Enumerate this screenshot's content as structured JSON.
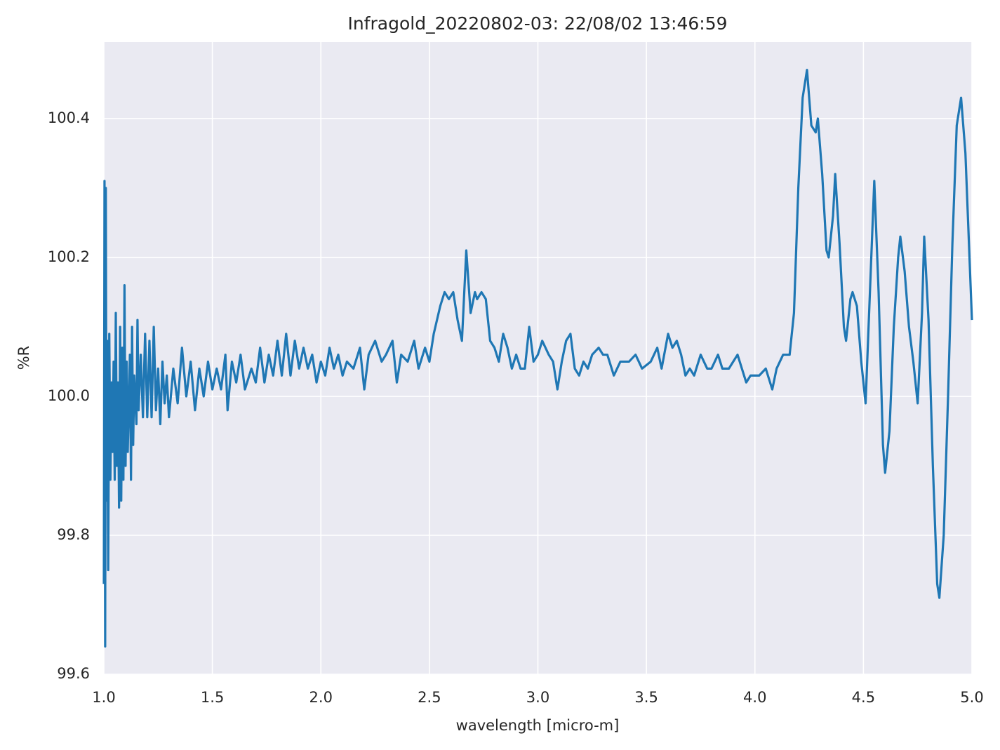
{
  "chart_data": {
    "type": "line",
    "title": "Infragold_20220802-03:  22/08/02 13:46:59",
    "x_label": "wavelength [micro-m]",
    "y_label": "%R",
    "xlim": [
      1.0,
      5.0
    ],
    "ylim": [
      99.6,
      100.51
    ],
    "xticks": [
      {
        "value": 1,
        "label": "1.0"
      },
      1.5,
      {
        "value": 2,
        "label": "2.0"
      },
      2.5,
      {
        "value": 3,
        "label": "3.0"
      },
      3.5,
      {
        "value": 4,
        "label": "4.0"
      },
      4.5,
      {
        "value": 5,
        "label": "5.0"
      }
    ],
    "yticks": [
      99.6,
      99.8,
      {
        "value": 100,
        "label": "100.0"
      },
      100.2,
      100.4
    ],
    "grid": true,
    "background": "#eaeaf2",
    "series": [
      {
        "color": "#1f77b4",
        "x": [
          1.0,
          1.003,
          1.006,
          1.009,
          1.012,
          1.015,
          1.02,
          1.025,
          1.03,
          1.035,
          1.04,
          1.045,
          1.05,
          1.055,
          1.06,
          1.065,
          1.07,
          1.075,
          1.08,
          1.085,
          1.09,
          1.095,
          1.1,
          1.105,
          1.11,
          1.12,
          1.125,
          1.13,
          1.135,
          1.14,
          1.15,
          1.155,
          1.16,
          1.17,
          1.18,
          1.19,
          1.2,
          1.21,
          1.22,
          1.23,
          1.24,
          1.25,
          1.26,
          1.27,
          1.28,
          1.29,
          1.3,
          1.32,
          1.34,
          1.36,
          1.38,
          1.4,
          1.42,
          1.44,
          1.46,
          1.48,
          1.5,
          1.52,
          1.54,
          1.56,
          1.57,
          1.59,
          1.61,
          1.63,
          1.65,
          1.68,
          1.7,
          1.72,
          1.74,
          1.76,
          1.78,
          1.8,
          1.82,
          1.84,
          1.86,
          1.88,
          1.9,
          1.92,
          1.94,
          1.96,
          1.98,
          2.0,
          2.02,
          2.04,
          2.06,
          2.08,
          2.1,
          2.12,
          2.15,
          2.18,
          2.2,
          2.22,
          2.25,
          2.28,
          2.3,
          2.33,
          2.35,
          2.37,
          2.4,
          2.43,
          2.45,
          2.48,
          2.5,
          2.52,
          2.55,
          2.57,
          2.59,
          2.61,
          2.63,
          2.65,
          2.67,
          2.69,
          2.71,
          2.72,
          2.74,
          2.76,
          2.78,
          2.8,
          2.82,
          2.84,
          2.86,
          2.88,
          2.9,
          2.92,
          2.94,
          2.96,
          2.98,
          3.0,
          3.02,
          3.05,
          3.07,
          3.09,
          3.11,
          3.13,
          3.15,
          3.17,
          3.19,
          3.21,
          3.23,
          3.25,
          3.28,
          3.3,
          3.32,
          3.35,
          3.38,
          3.42,
          3.45,
          3.48,
          3.52,
          3.55,
          3.57,
          3.6,
          3.62,
          3.64,
          3.66,
          3.68,
          3.7,
          3.72,
          3.75,
          3.78,
          3.8,
          3.83,
          3.85,
          3.88,
          3.92,
          3.94,
          3.96,
          3.98,
          4.02,
          4.05,
          4.08,
          4.1,
          4.13,
          4.16,
          4.18,
          4.2,
          4.22,
          4.24,
          4.26,
          4.28,
          4.29,
          4.31,
          4.33,
          4.34,
          4.36,
          4.37,
          4.39,
          4.41,
          4.42,
          4.44,
          4.45,
          4.47,
          4.49,
          4.51,
          4.53,
          4.55,
          4.57,
          4.59,
          4.6,
          4.62,
          4.64,
          4.66,
          4.67,
          4.69,
          4.71,
          4.73,
          4.75,
          4.77,
          4.78,
          4.8,
          4.82,
          4.84,
          4.85,
          4.87,
          4.89,
          4.91,
          4.93,
          4.95,
          4.97,
          5.0
        ],
        "values": [
          99.73,
          100.31,
          99.64,
          100.3,
          99.85,
          100.08,
          99.75,
          100.09,
          99.88,
          100.02,
          99.92,
          100.05,
          99.88,
          100.12,
          99.9,
          100.02,
          99.84,
          100.1,
          99.85,
          100.07,
          99.88,
          100.16,
          99.9,
          100.05,
          99.92,
          100.06,
          99.88,
          100.1,
          99.93,
          100.03,
          99.96,
          100.11,
          99.98,
          100.06,
          99.97,
          100.09,
          99.97,
          100.08,
          99.97,
          100.1,
          99.98,
          100.04,
          99.96,
          100.05,
          99.99,
          100.03,
          99.97,
          100.04,
          99.99,
          100.07,
          100.0,
          100.05,
          99.98,
          100.04,
          100.0,
          100.05,
          100.01,
          100.04,
          100.01,
          100.06,
          99.98,
          100.05,
          100.02,
          100.06,
          100.01,
          100.04,
          100.02,
          100.07,
          100.02,
          100.06,
          100.03,
          100.08,
          100.03,
          100.09,
          100.03,
          100.08,
          100.04,
          100.07,
          100.04,
          100.06,
          100.02,
          100.05,
          100.03,
          100.07,
          100.04,
          100.06,
          100.03,
          100.05,
          100.04,
          100.07,
          100.01,
          100.06,
          100.08,
          100.05,
          100.06,
          100.08,
          100.02,
          100.06,
          100.05,
          100.08,
          100.04,
          100.07,
          100.05,
          100.09,
          100.13,
          100.15,
          100.14,
          100.15,
          100.11,
          100.08,
          100.21,
          100.12,
          100.15,
          100.14,
          100.15,
          100.14,
          100.08,
          100.07,
          100.05,
          100.09,
          100.07,
          100.04,
          100.06,
          100.04,
          100.04,
          100.1,
          100.05,
          100.06,
          100.08,
          100.06,
          100.05,
          100.01,
          100.05,
          100.08,
          100.09,
          100.04,
          100.03,
          100.05,
          100.04,
          100.06,
          100.07,
          100.06,
          100.06,
          100.03,
          100.05,
          100.05,
          100.06,
          100.04,
          100.05,
          100.07,
          100.04,
          100.09,
          100.07,
          100.08,
          100.06,
          100.03,
          100.04,
          100.03,
          100.06,
          100.04,
          100.04,
          100.06,
          100.04,
          100.04,
          100.06,
          100.04,
          100.02,
          100.03,
          100.03,
          100.04,
          100.01,
          100.04,
          100.06,
          100.06,
          100.12,
          100.3,
          100.43,
          100.47,
          100.39,
          100.38,
          100.4,
          100.32,
          100.21,
          100.2,
          100.26,
          100.32,
          100.22,
          100.1,
          100.08,
          100.14,
          100.15,
          100.13,
          100.05,
          99.99,
          100.15,
          100.31,
          100.15,
          99.93,
          99.89,
          99.95,
          100.1,
          100.2,
          100.23,
          100.18,
          100.1,
          100.05,
          99.99,
          100.12,
          100.23,
          100.11,
          99.9,
          99.73,
          99.71,
          99.8,
          100.0,
          100.22,
          100.39,
          100.43,
          100.35,
          100.11
        ]
      }
    ]
  }
}
